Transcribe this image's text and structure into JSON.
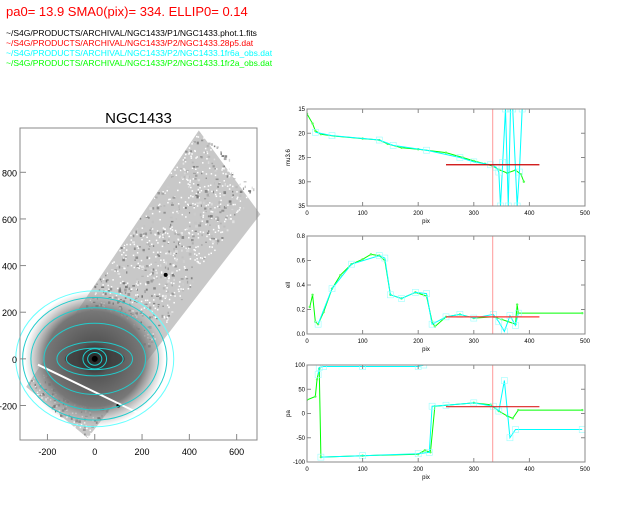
{
  "header": {
    "params": "pa0= 13.9  SMA0(pix)= 334.  ELLIP0= 0.14",
    "files": [
      {
        "text": "~/S4G/PRODUCTS/ARCHIVAL/NGC1433/P1/NGC1433.phot.1.fits",
        "color": "#000000"
      },
      {
        "text": "~/S4G/PRODUCTS/ARCHIVAL/NGC1433/P2/NGC1433.28p5.dat",
        "color": "#ff0000"
      },
      {
        "text": "~/S4G/PRODUCTS/ARCHIVAL/NGC1433/P2/NGC1433.1fr6a_obs.dat",
        "color": "#00ffff"
      },
      {
        "text": "~/S4G/PRODUCTS/ARCHIVAL/NGC1433/P2/NGC1433.1fr2a_obs.dat",
        "color": "#00ff00"
      }
    ]
  },
  "chart_data": [
    {
      "type": "image",
      "title": "NGC1433",
      "xlim": [
        -316,
        686
      ],
      "ylim": [
        -348,
        990
      ],
      "xticks": [
        "-200",
        "0",
        "200",
        "400",
        "600"
      ],
      "yticks": [
        "-200",
        "0",
        "200",
        "400",
        "600",
        "800"
      ],
      "ellipses": [
        {
          "sma": 30,
          "ellip": 0.1,
          "pa": 0
        },
        {
          "sma": 50,
          "ellip": 0.15,
          "pa": 0
        },
        {
          "sma": 120,
          "ellip": 0.62,
          "pa": 90
        },
        {
          "sma": 160,
          "ellip": 0.55,
          "pa": 90
        },
        {
          "sma": 215,
          "ellip": 0.3,
          "pa": 90
        },
        {
          "sma": 270,
          "ellip": 0.2,
          "pa": 90
        },
        {
          "sma": 305,
          "ellip": 0.15,
          "pa": 90
        },
        {
          "sma": 334,
          "ellip": 0.14,
          "pa": 90
        }
      ]
    },
    {
      "type": "line",
      "xlabel": "pix",
      "ylabel": "mu3.6",
      "xlim": [
        0,
        500
      ],
      "ylim": [
        35,
        15
      ],
      "xticks": [
        "0",
        "100",
        "200",
        "300",
        "400",
        "500"
      ],
      "yticks": [
        "15",
        "20",
        "25",
        "30",
        "35"
      ],
      "series": [
        {
          "name": "1fr2a",
          "color": "#00ff00",
          "points": [
            [
              0,
              16
            ],
            [
              10,
              18
            ],
            [
              15,
              19.5
            ],
            [
              25,
              20.2
            ],
            [
              50,
              20.6
            ],
            [
              100,
              21.1
            ],
            [
              130,
              21.4
            ],
            [
              145,
              22.2
            ],
            [
              170,
              23
            ],
            [
              200,
              23.3
            ],
            [
              250,
              24
            ],
            [
              280,
              25
            ],
            [
              300,
              25.7
            ],
            [
              320,
              26.3
            ],
            [
              335,
              26.8
            ],
            [
              345,
              27.5
            ],
            [
              360,
              28.2
            ],
            [
              375,
              27.6
            ],
            [
              385,
              28.5
            ],
            [
              390,
              30
            ]
          ]
        },
        {
          "name": "1fr6a",
          "color": "#00ffff",
          "points": [
            [
              15,
              19.8
            ],
            [
              45,
              20.5
            ],
            [
              130,
              21.4
            ],
            [
              155,
              22.5
            ],
            [
              215,
              23.5
            ],
            [
              275,
              25
            ],
            [
              300,
              25.9
            ],
            [
              330,
              26.5
            ],
            [
              340,
              27
            ],
            [
              345,
              28
            ],
            [
              348,
              35
            ],
            [
              352,
              26
            ],
            [
              357,
              15
            ],
            [
              362,
              35
            ],
            [
              366,
              15
            ],
            [
              370,
              15
            ],
            [
              378,
              35
            ],
            [
              382,
              28
            ],
            [
              387,
              15
            ]
          ]
        }
      ],
      "hline": {
        "value": 26.5,
        "from": 250,
        "to": 418,
        "color": "#cc0000"
      },
      "vline": {
        "value": 334,
        "color": "#ff9999"
      }
    },
    {
      "type": "line",
      "xlabel": "pix",
      "ylabel": "ell",
      "xlim": [
        0,
        500
      ],
      "ylim": [
        0,
        0.8
      ],
      "xticks": [
        "0",
        "100",
        "200",
        "300",
        "400",
        "500"
      ],
      "yticks": [
        "0.0",
        "0.2",
        "0.4",
        "0.6",
        "0.8"
      ],
      "series": [
        {
          "name": "1fr2a",
          "color": "#00ff00",
          "points": [
            [
              5,
              0.22
            ],
            [
              10,
              0.32
            ],
            [
              15,
              0.1
            ],
            [
              20,
              0.08
            ],
            [
              30,
              0.18
            ],
            [
              45,
              0.37
            ],
            [
              60,
              0.48
            ],
            [
              80,
              0.57
            ],
            [
              100,
              0.61
            ],
            [
              115,
              0.65
            ],
            [
              130,
              0.64
            ],
            [
              140,
              0.6
            ],
            [
              150,
              0.32
            ],
            [
              170,
              0.29
            ],
            [
              195,
              0.34
            ],
            [
              215,
              0.31
            ],
            [
              225,
              0.1
            ],
            [
              230,
              0.06
            ],
            [
              250,
              0.14
            ],
            [
              275,
              0.16
            ],
            [
              300,
              0.13
            ],
            [
              335,
              0.14
            ],
            [
              350,
              0.12
            ],
            [
              375,
              0.08
            ],
            [
              378,
              0.24
            ],
            [
              380,
              0.17
            ],
            [
              495,
              0.17
            ]
          ]
        },
        {
          "name": "1fr6a",
          "color": "#00ffff",
          "points": [
            [
              20,
              0.08
            ],
            [
              45,
              0.37
            ],
            [
              80,
              0.57
            ],
            [
              130,
              0.64
            ],
            [
              140,
              0.62
            ],
            [
              150,
              0.32
            ],
            [
              170,
              0.29
            ],
            [
              195,
              0.34
            ],
            [
              215,
              0.33
            ],
            [
              225,
              0.08
            ],
            [
              250,
              0.14
            ],
            [
              275,
              0.16
            ],
            [
              300,
              0.13
            ],
            [
              335,
              0.16
            ],
            [
              345,
              0.1
            ],
            [
              355,
              0.02
            ],
            [
              365,
              0.15
            ],
            [
              375,
              0.07
            ],
            [
              380,
              0.17
            ]
          ]
        }
      ],
      "hline": {
        "value": 0.14,
        "from": 250,
        "to": 418,
        "color": "#ff3333"
      },
      "vline": {
        "value": 334,
        "color": "#ff9999"
      }
    },
    {
      "type": "line",
      "xlabel": "pix",
      "ylabel": "pa",
      "xlim": [
        0,
        500
      ],
      "ylim": [
        -100,
        100
      ],
      "xticks": [
        "0",
        "100",
        "200",
        "300",
        "400",
        "500"
      ],
      "yticks": [
        "-100",
        "-50",
        "0",
        "50",
        "100"
      ],
      "series": [
        {
          "name": "1fr2a",
          "color": "#00ff00",
          "points": [
            [
              0,
              28
            ],
            [
              15,
              35
            ],
            [
              18,
              70
            ],
            [
              22,
              92
            ],
            [
              25,
              -90
            ],
            [
              100,
              -87
            ],
            [
              200,
              -84
            ],
            [
              212,
              -76
            ],
            [
              222,
              -80
            ],
            [
              230,
              15
            ],
            [
              300,
              22
            ],
            [
              330,
              18
            ],
            [
              345,
              5
            ],
            [
              360,
              -5
            ],
            [
              370,
              -10
            ],
            [
              380,
              7
            ],
            [
              495,
              7
            ]
          ]
        },
        {
          "name": "1fr6a",
          "color": "#00ffff",
          "points": [
            [
              20,
              80
            ],
            [
              22,
              95
            ],
            [
              30,
              97
            ],
            [
              100,
              97
            ],
            [
              200,
              97
            ],
            [
              210,
              100
            ]
          ]
        },
        {
          "name": "1fr6a-b",
          "color": "#00ffff",
          "points": [
            [
              25,
              -90
            ],
            [
              100,
              -87
            ],
            [
              200,
              -83
            ],
            [
              220,
              -80
            ],
            [
              225,
              15
            ],
            [
              250,
              17
            ],
            [
              300,
              22
            ],
            [
              335,
              15
            ],
            [
              345,
              5
            ],
            [
              355,
              68
            ],
            [
              365,
              -50
            ],
            [
              375,
              -33
            ],
            [
              495,
              -33
            ]
          ]
        }
      ],
      "hline": {
        "value": 14,
        "from": 250,
        "to": 418,
        "color": "#dd2222"
      },
      "vline": {
        "value": 334,
        "color": "#ff9999"
      }
    }
  ]
}
